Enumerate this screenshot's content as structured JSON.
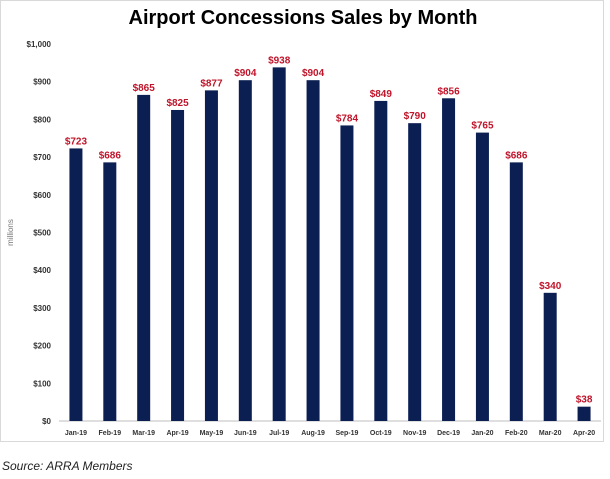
{
  "chart_data": {
    "type": "bar",
    "title": "Airport Concessions Sales by Month",
    "ylabel": "millions",
    "xlabel": "",
    "ylim": [
      0,
      1000
    ],
    "yticks": [
      "$0",
      "$100",
      "$200",
      "$300",
      "$400",
      "$500",
      "$600",
      "$700",
      "$800",
      "$900",
      "$1,000"
    ],
    "categories": [
      "Jan-19",
      "Feb-19",
      "Mar-19",
      "Apr-19",
      "May-19",
      "Jun-19",
      "Jul-19",
      "Aug-19",
      "Sep-19",
      "Oct-19",
      "Nov-19",
      "Dec-19",
      "Jan-20",
      "Feb-20",
      "Mar-20",
      "Apr-20"
    ],
    "values": [
      723,
      686,
      865,
      825,
      877,
      904,
      938,
      904,
      784,
      849,
      790,
      856,
      765,
      686,
      340,
      38
    ],
    "labels": [
      "$723",
      "$686",
      "$865",
      "$825",
      "$877",
      "$904",
      "$938",
      "$904",
      "$784",
      "$849",
      "$790",
      "$856",
      "$765",
      "$686",
      "$340",
      "$38"
    ],
    "grid": false,
    "legend": "none",
    "colors": {
      "bar": "#0b1f52",
      "label": "#c0142a",
      "axis": "#bfbfbf"
    }
  },
  "source": "Source: ARRA Members"
}
